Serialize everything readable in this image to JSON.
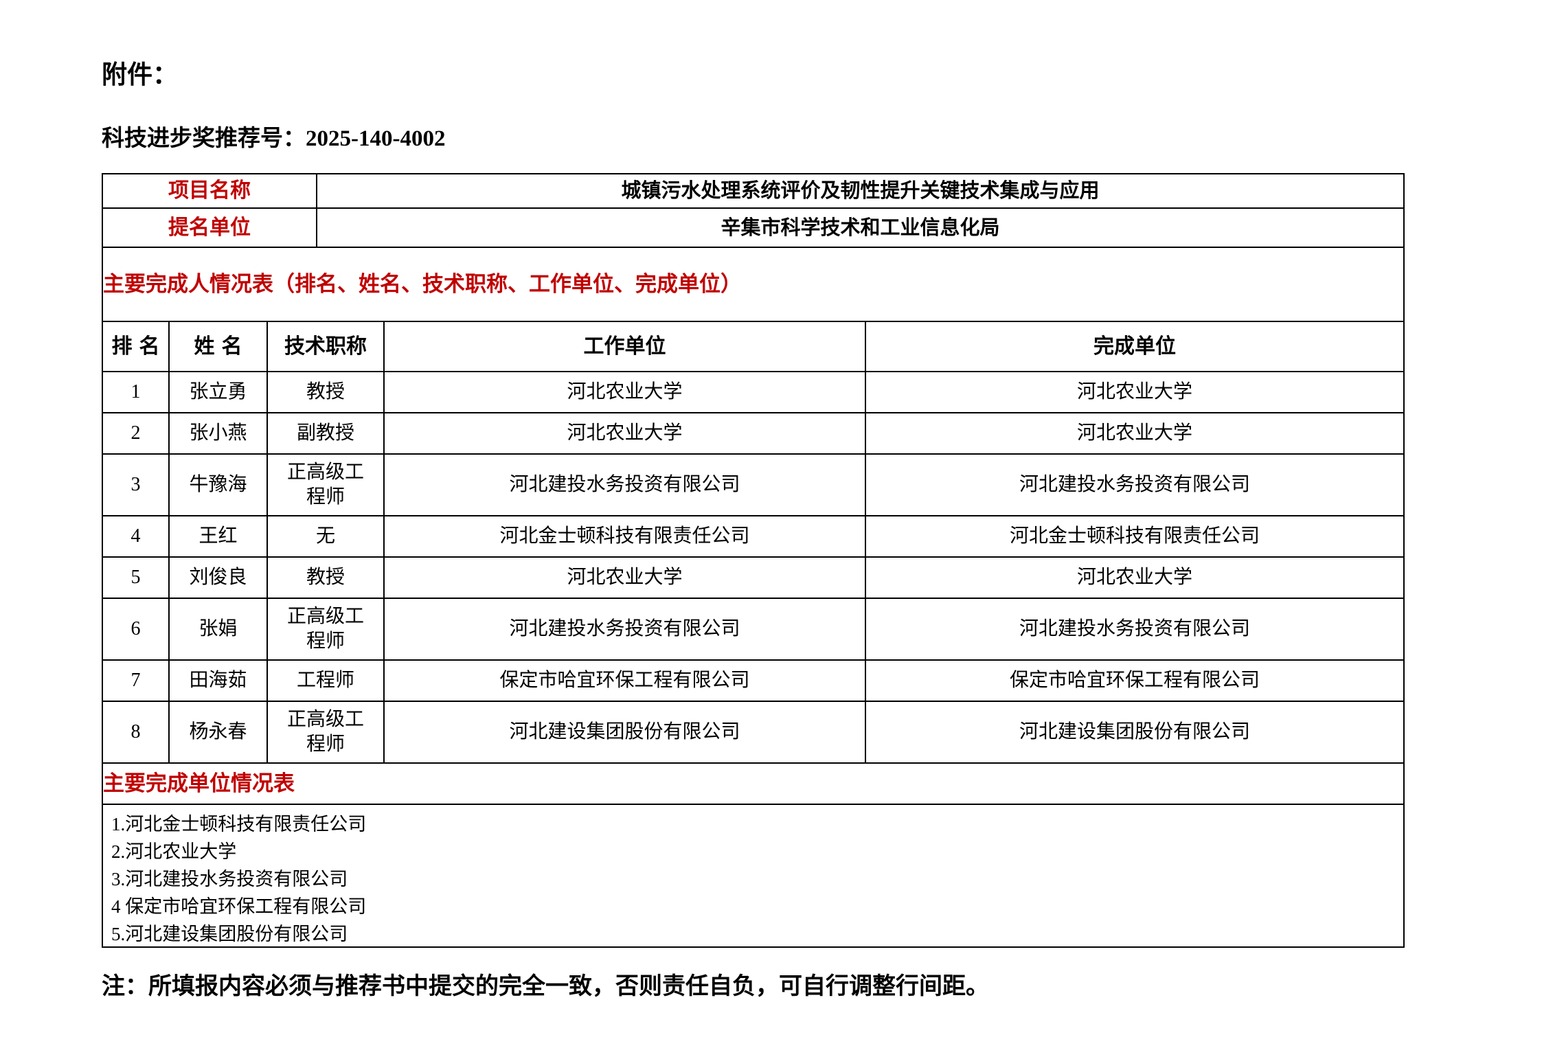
{
  "page": {
    "attachment_label": "附件：",
    "recommendation_label": "科技进步奖推荐号：",
    "recommendation_number": "2025-140-4002",
    "note": "注：所填报内容必须与推荐书中提交的完全一致，否则责任自负，可自行调整行间距。"
  },
  "colors": {
    "accent_red": "#C00000",
    "border_black": "#000000",
    "background": "#FFFFFF"
  },
  "info_rows": [
    {
      "label": "项目名称",
      "value": "城镇污水处理系统评价及韧性提升关键技术集成与应用"
    },
    {
      "label": "提名单位",
      "value": "辛集市科学技术和工业信息化局"
    }
  ],
  "people_table": {
    "title": "主要完成人情况表（排名、姓名、技术职称、工作单位、完成单位）",
    "headers": [
      "排名",
      "姓名",
      "技术职称",
      "工作单位",
      "完成单位"
    ],
    "rows": [
      [
        "1",
        "张立勇",
        "教授",
        "河北农业大学",
        "河北农业大学"
      ],
      [
        "2",
        "张小燕",
        "副教授",
        "河北农业大学",
        "河北农业大学"
      ],
      [
        "3",
        "牛豫海",
        "正高级工程师",
        "河北建投水务投资有限公司",
        "河北建投水务投资有限公司"
      ],
      [
        "4",
        "王红",
        "无",
        "河北金士顿科技有限责任公司",
        "河北金士顿科技有限责任公司"
      ],
      [
        "5",
        "刘俊良",
        "教授",
        "河北农业大学",
        "河北农业大学"
      ],
      [
        "6",
        "张娟",
        "正高级工程师",
        "河北建投水务投资有限公司",
        "河北建投水务投资有限公司"
      ],
      [
        "7",
        "田海茹",
        "工程师",
        "保定市哈宜环保工程有限公司",
        "保定市哈宜环保工程有限公司"
      ],
      [
        "8",
        "杨永春",
        "正高级工程师",
        "河北建设集团股份有限公司",
        "河北建设集团股份有限公司"
      ]
    ]
  },
  "units_table": {
    "title": "主要完成单位情况表",
    "items": [
      "1.河北金士顿科技有限责任公司",
      "2.河北农业大学",
      "3.河北建投水务投资有限公司",
      "4 保定市哈宜环保工程有限公司",
      "5.河北建设集团股份有限公司"
    ]
  }
}
